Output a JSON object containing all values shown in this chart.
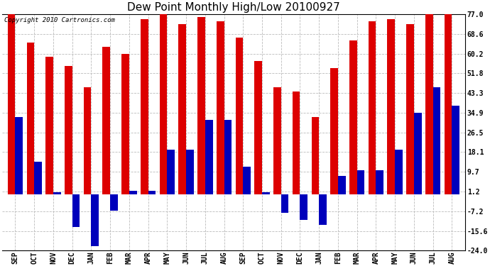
{
  "title": "Dew Point Monthly High/Low 20100927",
  "copyright": "Copyright 2010 Cartronics.com",
  "months": [
    "SEP",
    "OCT",
    "NOV",
    "DEC",
    "JAN",
    "FEB",
    "MAR",
    "APR",
    "MAY",
    "JUN",
    "JUL",
    "AUG",
    "SEP",
    "OCT",
    "NOV",
    "DEC",
    "JAN",
    "FEB",
    "MAR",
    "APR",
    "MAY",
    "JUN",
    "JUL",
    "AUG"
  ],
  "highs": [
    77.0,
    65.0,
    59.0,
    55.0,
    46.0,
    63.0,
    60.0,
    75.0,
    77.0,
    73.0,
    76.0,
    74.0,
    67.0,
    57.0,
    46.0,
    44.0,
    33.0,
    54.0,
    66.0,
    74.0,
    75.0,
    73.0,
    77.0,
    77.0
  ],
  "lows": [
    33.0,
    14.0,
    1.0,
    -14.0,
    -22.0,
    -7.0,
    1.5,
    1.5,
    19.0,
    19.0,
    32.0,
    32.0,
    12.0,
    1.0,
    -8.0,
    -11.0,
    -13.0,
    8.0,
    10.5,
    10.5,
    19.0,
    35.0,
    46.0,
    38.0
  ],
  "high_color": "#dd0000",
  "low_color": "#0000bb",
  "background_color": "#ffffff",
  "grid_color": "#bbbbbb",
  "ylim_min": -24.0,
  "ylim_max": 77.0,
  "yticks": [
    77.0,
    68.6,
    60.2,
    51.8,
    43.3,
    34.9,
    26.5,
    18.1,
    9.7,
    1.2,
    -7.2,
    -15.6,
    -24.0
  ],
  "bar_width": 0.4,
  "title_fontsize": 11,
  "tick_fontsize": 7,
  "copyright_fontsize": 6.5,
  "figwidth": 6.9,
  "figheight": 3.75,
  "dpi": 100
}
